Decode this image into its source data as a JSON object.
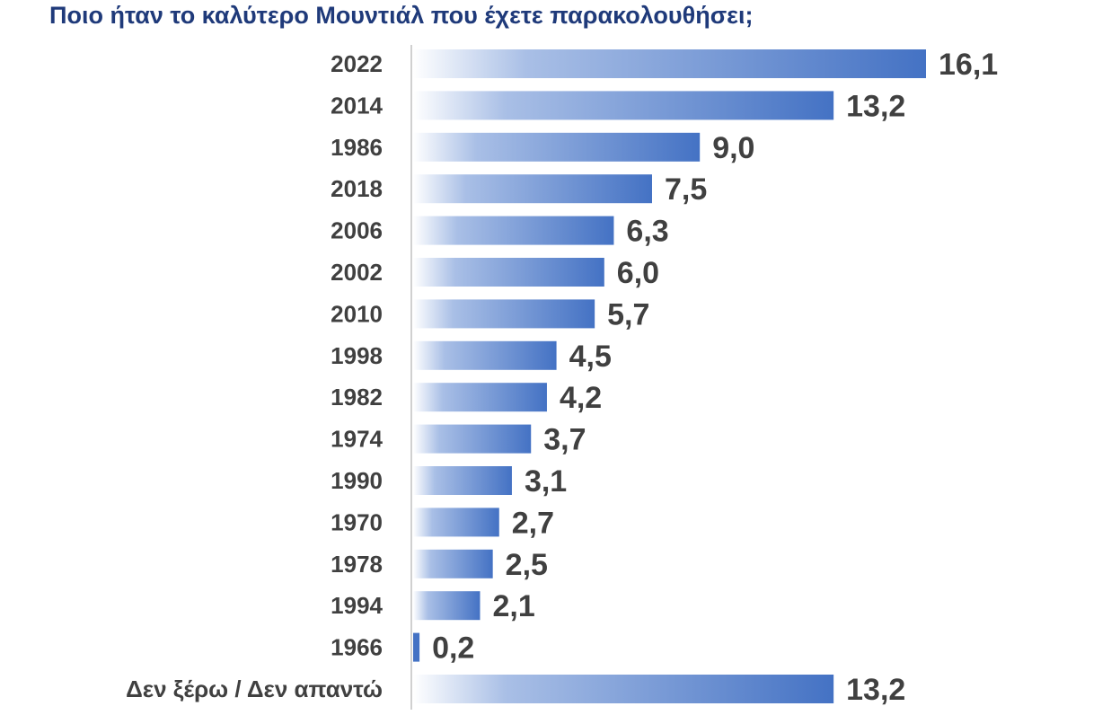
{
  "chart_data": {
    "type": "bar",
    "orientation": "horizontal",
    "title": "Ποιο ήταν το καλύτερο Μουντιάλ που έχετε παρακολουθήσει;",
    "categories": [
      "2022",
      "2014",
      "1986",
      "2018",
      "2006",
      "2002",
      "2010",
      "1998",
      "1982",
      "1974",
      "1990",
      "1970",
      "1978",
      "1994",
      "1966",
      "Δεν ξέρω / Δεν απαντώ"
    ],
    "values": [
      16.1,
      13.2,
      9.0,
      7.5,
      6.3,
      6.0,
      5.7,
      4.5,
      4.2,
      3.7,
      3.1,
      2.7,
      2.5,
      2.1,
      0.2,
      13.2
    ],
    "value_labels": [
      "16,1",
      "13,2",
      "9,0",
      "7,5",
      "6,3",
      "6,0",
      "5,7",
      "4,5",
      "4,2",
      "3,7",
      "3,1",
      "2,7",
      "2,5",
      "2,1",
      "0,2",
      "13,2"
    ],
    "xlim": [
      0,
      16.1
    ],
    "grid": false,
    "legend": "none",
    "colors": {
      "bar_start": "#ffffff",
      "bar_end": "#4472c4",
      "axis": "#d0d0d0",
      "text": "#404040",
      "title": "#1f3a7a"
    }
  }
}
